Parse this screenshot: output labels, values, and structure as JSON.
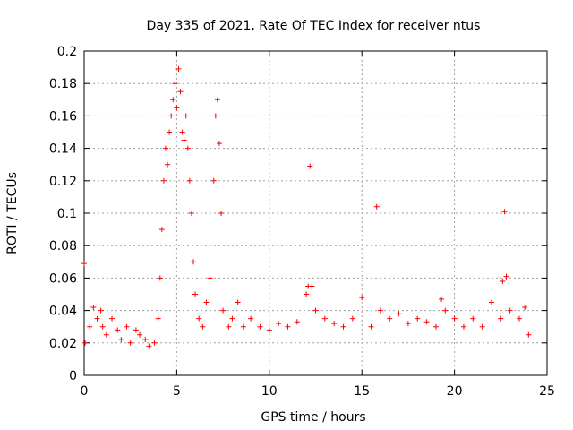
{
  "chart_data": {
    "type": "scatter",
    "title": "Day 335 of 2021, Rate Of TEC Index for receiver ntus",
    "xlabel": "GPS time / hours",
    "ylabel": "ROTI / TECUs",
    "xlim": [
      0,
      25
    ],
    "ylim": [
      0,
      0.2
    ],
    "x_ticks": [
      "0",
      "5",
      "10",
      "15",
      "20",
      "25"
    ],
    "y_ticks": [
      "0",
      "0.02",
      "0.04",
      "0.06",
      "0.08",
      "0.1",
      "0.12",
      "0.14",
      "0.16",
      "0.18",
      "0.2"
    ],
    "grid": true,
    "marker": "+",
    "color": "#ff0000",
    "series": [
      {
        "name": "ROTI",
        "x": [
          0.0,
          0.05,
          0.3,
          0.5,
          0.7,
          0.9,
          1.0,
          1.2,
          1.5,
          1.8,
          2.0,
          2.3,
          2.5,
          2.8,
          3.0,
          3.3,
          3.5,
          3.8,
          4.0,
          4.1,
          4.2,
          4.3,
          4.4,
          4.5,
          4.6,
          4.7,
          4.8,
          4.9,
          5.0,
          5.1,
          5.2,
          5.3,
          5.4,
          5.5,
          5.6,
          5.7,
          5.8,
          5.9,
          6.0,
          6.2,
          6.4,
          6.6,
          6.8,
          7.0,
          7.1,
          7.2,
          7.3,
          7.4,
          7.5,
          7.8,
          8.0,
          8.3,
          8.6,
          9.0,
          9.5,
          10.0,
          10.5,
          11.0,
          11.5,
          12.0,
          12.1,
          12.2,
          12.3,
          12.5,
          13.0,
          13.5,
          14.0,
          14.5,
          15.0,
          15.5,
          15.8,
          16.0,
          16.5,
          17.0,
          17.5,
          18.0,
          18.5,
          19.0,
          19.3,
          19.5,
          20.0,
          20.5,
          21.0,
          21.5,
          22.0,
          22.5,
          22.6,
          22.7,
          22.8,
          23.0,
          23.5,
          23.8,
          24.0
        ],
        "y": [
          0.069,
          0.02,
          0.03,
          0.042,
          0.035,
          0.04,
          0.03,
          0.025,
          0.035,
          0.028,
          0.022,
          0.03,
          0.02,
          0.028,
          0.025,
          0.022,
          0.018,
          0.02,
          0.035,
          0.06,
          0.09,
          0.12,
          0.14,
          0.13,
          0.15,
          0.16,
          0.17,
          0.18,
          0.165,
          0.189,
          0.175,
          0.15,
          0.145,
          0.16,
          0.14,
          0.12,
          0.1,
          0.07,
          0.05,
          0.035,
          0.03,
          0.045,
          0.06,
          0.12,
          0.16,
          0.17,
          0.143,
          0.1,
          0.04,
          0.03,
          0.035,
          0.045,
          0.03,
          0.035,
          0.03,
          0.028,
          0.032,
          0.03,
          0.033,
          0.05,
          0.055,
          0.129,
          0.055,
          0.04,
          0.035,
          0.032,
          0.03,
          0.035,
          0.048,
          0.03,
          0.104,
          0.04,
          0.035,
          0.038,
          0.032,
          0.035,
          0.033,
          0.03,
          0.047,
          0.04,
          0.035,
          0.03,
          0.035,
          0.03,
          0.045,
          0.035,
          0.058,
          0.101,
          0.061,
          0.04,
          0.035,
          0.042,
          0.025
        ]
      }
    ]
  }
}
